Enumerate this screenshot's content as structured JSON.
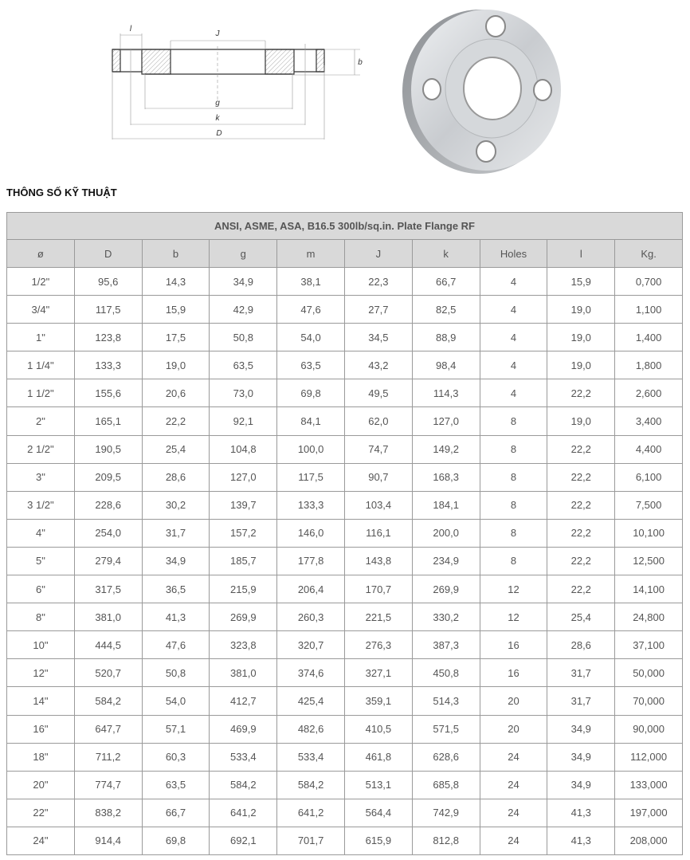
{
  "drawing_labels": {
    "J": "J",
    "l": "l",
    "b": "b",
    "g": "g",
    "k": "k",
    "D": "D"
  },
  "section_title": "THÔNG SỐ KỸ THUẬT",
  "table": {
    "title": "ANSI, ASME, ASA, B16.5 300lb/sq.in. Plate Flange RF",
    "headers": [
      "ø",
      "D",
      "b",
      "g",
      "m",
      "J",
      "k",
      "Holes",
      "l",
      "Kg."
    ],
    "rows": [
      [
        "1/2\"",
        "95,6",
        "14,3",
        "34,9",
        "38,1",
        "22,3",
        "66,7",
        "4",
        "15,9",
        "0,700"
      ],
      [
        "3/4\"",
        "117,5",
        "15,9",
        "42,9",
        "47,6",
        "27,7",
        "82,5",
        "4",
        "19,0",
        "1,100"
      ],
      [
        "1\"",
        "123,8",
        "17,5",
        "50,8",
        "54,0",
        "34,5",
        "88,9",
        "4",
        "19,0",
        "1,400"
      ],
      [
        "1 1/4\"",
        "133,3",
        "19,0",
        "63,5",
        "63,5",
        "43,2",
        "98,4",
        "4",
        "19,0",
        "1,800"
      ],
      [
        "1 1/2\"",
        "155,6",
        "20,6",
        "73,0",
        "69,8",
        "49,5",
        "114,3",
        "4",
        "22,2",
        "2,600"
      ],
      [
        "2\"",
        "165,1",
        "22,2",
        "92,1",
        "84,1",
        "62,0",
        "127,0",
        "8",
        "19,0",
        "3,400"
      ],
      [
        "2 1/2\"",
        "190,5",
        "25,4",
        "104,8",
        "100,0",
        "74,7",
        "149,2",
        "8",
        "22,2",
        "4,400"
      ],
      [
        "3\"",
        "209,5",
        "28,6",
        "127,0",
        "117,5",
        "90,7",
        "168,3",
        "8",
        "22,2",
        "6,100"
      ],
      [
        "3 1/2\"",
        "228,6",
        "30,2",
        "139,7",
        "133,3",
        "103,4",
        "184,1",
        "8",
        "22,2",
        "7,500"
      ],
      [
        "4\"",
        "254,0",
        "31,7",
        "157,2",
        "146,0",
        "116,1",
        "200,0",
        "8",
        "22,2",
        "10,100"
      ],
      [
        "5\"",
        "279,4",
        "34,9",
        "185,7",
        "177,8",
        "143,8",
        "234,9",
        "8",
        "22,2",
        "12,500"
      ],
      [
        "6\"",
        "317,5",
        "36,5",
        "215,9",
        "206,4",
        "170,7",
        "269,9",
        "12",
        "22,2",
        "14,100"
      ],
      [
        "8\"",
        "381,0",
        "41,3",
        "269,9",
        "260,3",
        "221,5",
        "330,2",
        "12",
        "25,4",
        "24,800"
      ],
      [
        "10\"",
        "444,5",
        "47,6",
        "323,8",
        "320,7",
        "276,3",
        "387,3",
        "16",
        "28,6",
        "37,100"
      ],
      [
        "12\"",
        "520,7",
        "50,8",
        "381,0",
        "374,6",
        "327,1",
        "450,8",
        "16",
        "31,7",
        "50,000"
      ],
      [
        "14\"",
        "584,2",
        "54,0",
        "412,7",
        "425,4",
        "359,1",
        "514,3",
        "20",
        "31,7",
        "70,000"
      ],
      [
        "16\"",
        "647,7",
        "57,1",
        "469,9",
        "482,6",
        "410,5",
        "571,5",
        "20",
        "34,9",
        "90,000"
      ],
      [
        "18\"",
        "711,2",
        "60,3",
        "533,4",
        "533,4",
        "461,8",
        "628,6",
        "24",
        "34,9",
        "112,000"
      ],
      [
        "20\"",
        "774,7",
        "63,5",
        "584,2",
        "584,2",
        "513,1",
        "685,8",
        "24",
        "34,9",
        "133,000"
      ],
      [
        "22\"",
        "838,2",
        "66,7",
        "641,2",
        "641,2",
        "564,4",
        "742,9",
        "24",
        "41,3",
        "197,000"
      ],
      [
        "24\"",
        "914,4",
        "69,8",
        "692,1",
        "701,7",
        "615,9",
        "812,8",
        "24",
        "41,3",
        "208,000"
      ]
    ]
  }
}
